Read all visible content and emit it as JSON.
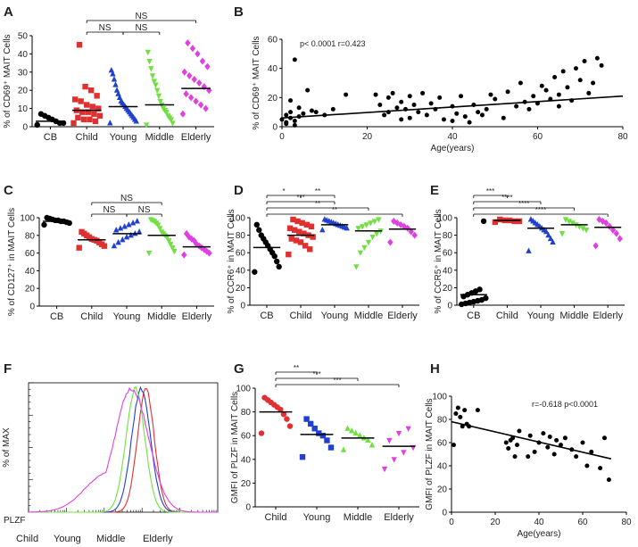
{
  "legend_f": [
    {
      "label": "Child",
      "color": "#e03030"
    },
    {
      "label": "Young",
      "color": "#2040d0"
    },
    {
      "label": "Middle",
      "color": "#70e040"
    },
    {
      "label": "Elderly",
      "color": "#e040e0"
    }
  ],
  "chart_data": [
    {
      "id": "A",
      "type": "scatter",
      "ylabel": "% of CD69⁺ MAIT Cells",
      "ylim": [
        0,
        50
      ],
      "yticks": [
        0,
        10,
        20,
        30,
        40,
        50
      ],
      "categories": [
        "CB",
        "Child",
        "Young",
        "Middle",
        "Elderly"
      ],
      "colors": [
        "#000000",
        "#e03030",
        "#2040d0",
        "#70e040",
        "#e040e0"
      ],
      "markers": [
        "circle",
        "square",
        "triangle",
        "triangle-down",
        "diamond"
      ],
      "means": [
        3,
        9,
        11,
        12,
        21
      ],
      "values": [
        [
          1,
          2,
          2,
          3,
          4,
          5,
          6,
          7
        ],
        [
          2,
          3,
          4,
          4,
          5,
          6,
          7,
          8,
          8,
          9,
          10,
          11,
          12,
          14,
          15,
          17,
          20,
          22,
          45
        ],
        [
          2,
          3,
          4,
          5,
          6,
          7,
          8,
          9,
          10,
          11,
          12,
          13,
          14,
          16,
          18,
          20,
          23,
          26,
          29,
          31
        ],
        [
          1,
          2,
          4,
          5,
          6,
          8,
          9,
          10,
          12,
          14,
          17,
          20,
          23,
          25,
          28,
          32,
          36,
          41
        ],
        [
          7,
          10,
          12,
          14,
          16,
          18,
          20,
          22,
          24,
          26,
          28,
          30,
          33,
          36,
          40,
          43,
          46
        ]
      ],
      "brackets": [
        {
          "from": 1,
          "to": 4,
          "label": "NS"
        },
        {
          "from": 1,
          "to": 2,
          "label": "NS"
        },
        {
          "from": 2,
          "to": 3,
          "label": "NS"
        }
      ]
    },
    {
      "id": "B",
      "type": "scatter",
      "xlabel": "Age(years)",
      "ylabel": "% of CD69⁺ MAIT Cells",
      "xlim": [
        0,
        80
      ],
      "ylim": [
        0,
        60
      ],
      "xticks": [
        0,
        20,
        40,
        60,
        80
      ],
      "yticks": [
        0,
        20,
        40,
        60
      ],
      "annotation": "p< 0.0001  r=0.423",
      "fit": [
        [
          0,
          6
        ],
        [
          80,
          21
        ]
      ],
      "x": [
        0,
        1,
        1,
        2,
        2,
        3,
        3,
        4,
        5,
        6,
        7,
        8,
        10,
        12,
        15,
        22,
        23,
        24,
        25,
        25,
        26,
        27,
        28,
        28,
        29,
        30,
        30,
        31,
        32,
        33,
        34,
        35,
        36,
        37,
        38,
        40,
        40,
        41,
        42,
        43,
        44,
        45,
        46,
        47,
        48,
        49,
        50,
        52,
        53,
        55,
        56,
        57,
        58,
        59,
        60,
        61,
        62,
        63,
        64,
        65,
        65,
        66,
        67,
        68,
        69,
        70,
        71,
        72,
        73,
        74,
        75,
        2,
        4,
        3,
        1
      ],
      "y": [
        5,
        8,
        3,
        10,
        6,
        46,
        4,
        7,
        9,
        25,
        11,
        10,
        8,
        12,
        22,
        22,
        15,
        8,
        20,
        10,
        23,
        13,
        5,
        17,
        12,
        21,
        6,
        15,
        10,
        23,
        8,
        16,
        12,
        20,
        5,
        4,
        14,
        9,
        21,
        7,
        3,
        15,
        10,
        8,
        12,
        22,
        19,
        6,
        24,
        14,
        30,
        17,
        12,
        21,
        16,
        28,
        25,
        19,
        34,
        22,
        14,
        38,
        27,
        18,
        40,
        32,
        45,
        23,
        30,
        47,
        42,
        18,
        13,
        1,
        2
      ]
    },
    {
      "id": "C",
      "type": "scatter",
      "ylabel": "% of CD127⁺ in MAIT Cells",
      "ylim": [
        0,
        100
      ],
      "yticks": [
        0,
        20,
        40,
        60,
        80,
        100
      ],
      "categories": [
        "CB",
        "Child",
        "Young",
        "Middle",
        "Elderly"
      ],
      "colors": [
        "#000000",
        "#e03030",
        "#2040d0",
        "#70e040",
        "#e040e0"
      ],
      "markers": [
        "circle",
        "square",
        "triangle",
        "triangle-down",
        "diamond"
      ],
      "means": [
        96,
        75,
        82,
        80,
        67
      ],
      "values": [
        [
          92,
          94,
          95,
          96,
          96,
          97,
          97,
          98,
          99,
          100
        ],
        [
          66,
          68,
          70,
          72,
          74,
          75,
          76,
          78,
          80,
          82,
          84
        ],
        [
          68,
          72,
          75,
          78,
          80,
          82,
          84,
          86,
          88,
          90,
          92,
          94,
          96
        ],
        [
          60,
          62,
          66,
          70,
          74,
          78,
          80,
          82,
          84,
          88,
          92,
          94,
          96,
          97,
          98
        ],
        [
          58,
          60,
          62,
          64,
          66,
          68,
          70,
          74,
          76,
          78,
          82
        ]
      ],
      "brackets": [
        {
          "from": 1,
          "to": 3,
          "label": "NS"
        },
        {
          "from": 1,
          "to": 2,
          "label": "NS"
        },
        {
          "from": 2,
          "to": 3,
          "label": "NS"
        }
      ]
    },
    {
      "id": "D",
      "type": "scatter",
      "ylabel": "% of CCR6⁺ in MAIT Cells",
      "ylim": [
        0,
        100
      ],
      "yticks": [
        0,
        20,
        40,
        60,
        80,
        100
      ],
      "categories": [
        "CB",
        "Child",
        "Young",
        "Middle",
        "Elderly"
      ],
      "colors": [
        "#000000",
        "#e03030",
        "#2040d0",
        "#70e040",
        "#e040e0"
      ],
      "markers": [
        "circle",
        "square",
        "triangle",
        "triangle-down",
        "diamond"
      ],
      "means": [
        66,
        80,
        92,
        85,
        87
      ],
      "values": [
        [
          38,
          44,
          50,
          56,
          60,
          64,
          68,
          72,
          76,
          80,
          86,
          92
        ],
        [
          58,
          64,
          68,
          72,
          74,
          76,
          78,
          80,
          82,
          84,
          86,
          88,
          90,
          92,
          94,
          96,
          98
        ],
        [
          86,
          88,
          89,
          90,
          91,
          92,
          93,
          94,
          95,
          96,
          97,
          98
        ],
        [
          44,
          60,
          66,
          72,
          78,
          82,
          85,
          88,
          90,
          92,
          94,
          96,
          98
        ],
        [
          72,
          80,
          84,
          88,
          90,
          92,
          94,
          96
        ]
      ],
      "brackets": [
        {
          "from": 0,
          "to": 1,
          "label": "*"
        },
        {
          "from": 1,
          "to": 2,
          "label": "**"
        },
        {
          "from": 0,
          "to": 2,
          "label": "***"
        },
        {
          "from": 0,
          "to": 3,
          "label": "**"
        },
        {
          "from": 0,
          "to": 4,
          "label": "**"
        }
      ]
    },
    {
      "id": "E",
      "type": "scatter",
      "ylabel": "% of CCR5⁺ in MAIT Cells",
      "ylim": [
        0,
        100
      ],
      "yticks": [
        0,
        20,
        40,
        60,
        80,
        100
      ],
      "categories": [
        "CB",
        "Child",
        "Young",
        "Middle",
        "Elderly"
      ],
      "colors": [
        "#000000",
        "#e03030",
        "#2040d0",
        "#70e040",
        "#e040e0"
      ],
      "markers": [
        "circle",
        "square",
        "triangle",
        "triangle-down",
        "diamond"
      ],
      "means": [
        12,
        97,
        88,
        92,
        89
      ],
      "values": [
        [
          1,
          2,
          3,
          4,
          5,
          6,
          8,
          10,
          12,
          14,
          16,
          18,
          96
        ],
        [
          95,
          96,
          96,
          97,
          97,
          98
        ],
        [
          62,
          72,
          76,
          80,
          84,
          86,
          88,
          90,
          92,
          94,
          96,
          98
        ],
        [
          82,
          86,
          88,
          90,
          92,
          94,
          96,
          98
        ],
        [
          68,
          76,
          82,
          86,
          90,
          94,
          96,
          98
        ]
      ],
      "brackets": [
        {
          "from": 0,
          "to": 1,
          "label": "***"
        },
        {
          "from": 0,
          "to": 2,
          "label": "****"
        },
        {
          "from": 0,
          "to": 3,
          "label": "****"
        },
        {
          "from": 0,
          "to": 4,
          "label": "****"
        }
      ]
    },
    {
      "id": "F",
      "type": "histogram",
      "ylabel": "% of MAX",
      "xlabel": "PLZF",
      "series": [
        {
          "name": "Child",
          "color": "#e03030",
          "peak": 0.62,
          "width": 0.045
        },
        {
          "name": "Young",
          "color": "#2040d0",
          "peak": 0.595,
          "width": 0.05
        },
        {
          "name": "Middle",
          "color": "#70e040",
          "peak": 0.565,
          "width": 0.05
        },
        {
          "name": "Elderly",
          "color": "#e040e0",
          "peak": 0.545,
          "width": 0.09
        }
      ]
    },
    {
      "id": "G",
      "type": "scatter",
      "ylabel": "GMFI of PLZF in MAIT Cells",
      "ylim": [
        0,
        100
      ],
      "yticks": [
        0,
        20,
        40,
        60,
        80,
        100
      ],
      "categories": [
        "Child",
        "Young",
        "Middle",
        "Elderly"
      ],
      "colors": [
        "#e03030",
        "#2040d0",
        "#70e040",
        "#e040e0"
      ],
      "markers": [
        "circle",
        "square",
        "triangle",
        "triangle-down"
      ],
      "means": [
        80,
        61,
        58,
        51
      ],
      "values": [
        [
          62,
          68,
          74,
          78,
          82,
          84,
          86,
          88,
          90,
          92
        ],
        [
          42,
          50,
          56,
          60,
          62,
          66,
          70,
          74
        ],
        [
          48,
          52,
          56,
          58,
          60,
          62,
          64,
          66
        ],
        [
          32,
          40,
          46,
          50,
          56,
          62,
          66
        ]
      ],
      "brackets": [
        {
          "from": 0,
          "to": 1,
          "label": "**"
        },
        {
          "from": 0,
          "to": 2,
          "label": "***"
        },
        {
          "from": 0,
          "to": 3,
          "label": "***"
        }
      ]
    },
    {
      "id": "H",
      "type": "scatter",
      "xlabel": "Age(years)",
      "ylabel": "GMFI of PLZF in MAIT Cells",
      "xlim": [
        0,
        80
      ],
      "ylim": [
        0,
        100
      ],
      "xticks": [
        0,
        20,
        40,
        60,
        80
      ],
      "yticks": [
        0,
        20,
        40,
        60,
        80,
        100
      ],
      "annotation": "r=-0.618   p<0.0001",
      "fit": [
        [
          0,
          78
        ],
        [
          73,
          46
        ]
      ],
      "x": [
        1,
        2,
        3,
        4,
        5,
        6,
        7,
        8,
        12,
        25,
        26,
        27,
        28,
        29,
        30,
        31,
        35,
        36,
        38,
        40,
        42,
        44,
        45,
        47,
        48,
        50,
        52,
        55,
        57,
        60,
        62,
        64,
        68,
        70,
        72
      ],
      "y": [
        58,
        85,
        90,
        82,
        74,
        88,
        76,
        74,
        88,
        60,
        55,
        62,
        64,
        48,
        58,
        70,
        48,
        66,
        52,
        60,
        68,
        56,
        65,
        50,
        62,
        58,
        64,
        54,
        48,
        60,
        40,
        52,
        38,
        64,
        28
      ]
    }
  ]
}
